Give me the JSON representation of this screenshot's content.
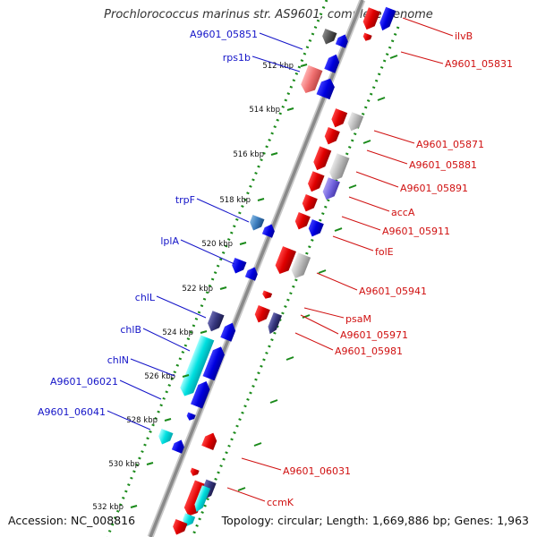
{
  "title": "Prochlorococcus marinus str. AS9601, complete genome",
  "footer": {
    "accession": "Accession: NC_008816",
    "summary": "Topology: circular; Length: 1,669,886 bp; Genes: 1,963"
  },
  "ticks": [
    "512 kbp",
    "514 kbp",
    "516 kbp",
    "518 kbp",
    "520 kbp",
    "522 kbp",
    "524 kbp",
    "526 kbp",
    "528 kbp",
    "530 kbp",
    "532 kbp"
  ],
  "genes_left": [
    "A9601_05851",
    "rps1b",
    "trpF",
    "lplA",
    "chlL",
    "chlB",
    "chlN",
    "A9601_06021",
    "A9601_06041"
  ],
  "genes_right": [
    "ilvB",
    "A9601_05831",
    "A9601_05871",
    "A9601_05881",
    "A9601_05891",
    "accA",
    "A9601_05911",
    "folE",
    "A9601_05941",
    "psaM",
    "A9601_05971",
    "A9601_05981",
    "A9601_06031",
    "ccmK"
  ],
  "colors": {
    "forward_strand": "#1414e6",
    "reverse_strand": "#e60f0f",
    "left_label": "#1414c8",
    "right_label": "#d01010",
    "backbone": "#8a8a8a",
    "dotted_ring": "#1a8a1a"
  }
}
